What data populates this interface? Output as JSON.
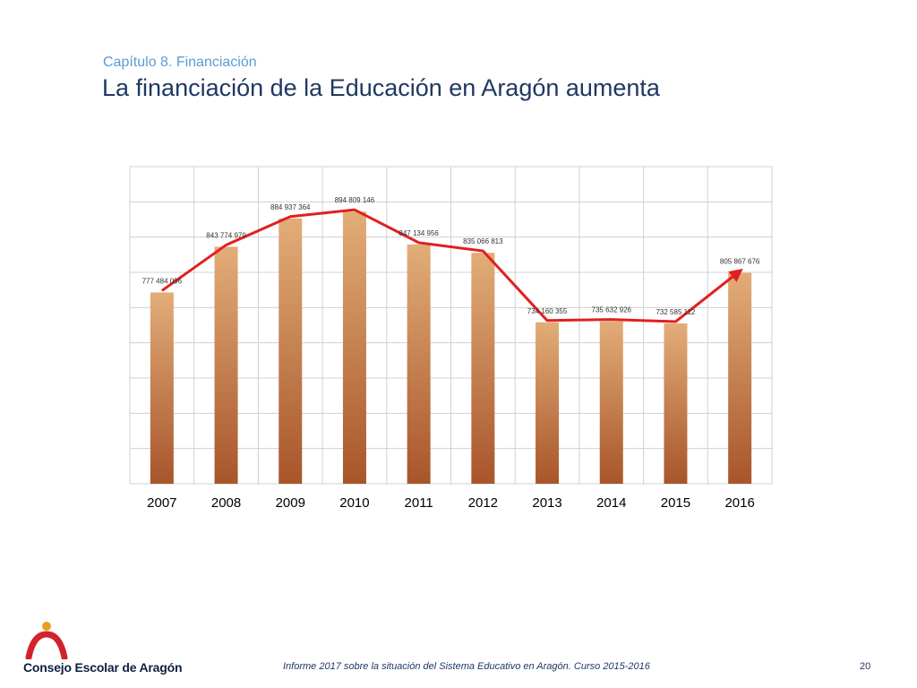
{
  "header": {
    "subtitle": "Capítulo 8. Financiación",
    "title": "La financiación de la Educación en Aragón aumenta"
  },
  "chart_data": {
    "type": "bar",
    "categories": [
      "2007",
      "2008",
      "2009",
      "2010",
      "2011",
      "2012",
      "2013",
      "2014",
      "2015",
      "2016"
    ],
    "values": [
      777484096,
      843774979,
      884937364,
      894809146,
      847134956,
      835066813,
      734160355,
      735632926,
      732585112,
      805867676
    ],
    "labels": [
      "777 484 096",
      "843 774 979",
      "884 937 364",
      "894 809 146",
      "847 134 956",
      "835 066 813",
      "734 160 355",
      "735 632 926",
      "732 585 112",
      "805 867 676"
    ],
    "line_overlay": true,
    "line_color": "#e02020",
    "bar_color_top": "#e2ad78",
    "bar_color_bottom": "#a8552a",
    "grid": true,
    "ylim": [
      500000000,
      960000000
    ],
    "title": "",
    "xlabel": "",
    "ylabel": ""
  },
  "footer": {
    "organization": "Consejo Escolar de Aragón",
    "report": "Informe 2017 sobre la situación del Sistema Educativo en Aragón. Curso 2015-2016",
    "page": "20"
  }
}
